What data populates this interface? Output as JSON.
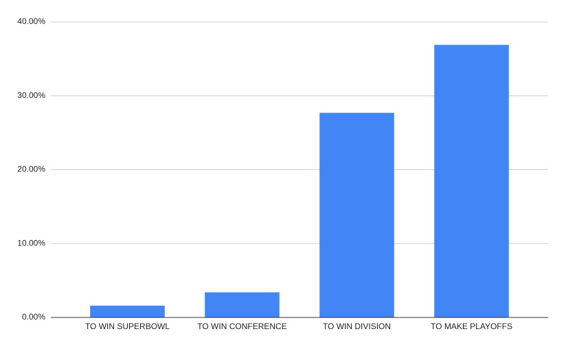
{
  "chart_data": {
    "type": "bar",
    "categories": [
      "TO WIN SUPERBOWL",
      "TO WIN CONFERENCE",
      "TO WIN DIVISION",
      "TO MAKE PLAYOFFS"
    ],
    "values": [
      1.6,
      3.4,
      27.7,
      36.9
    ],
    "color": "#4285f4",
    "ylim": [
      0,
      40
    ],
    "yticks": [
      {
        "value": 0,
        "label": "0.00%"
      },
      {
        "value": 10,
        "label": "10.00%"
      },
      {
        "value": 20,
        "label": "20.00%"
      },
      {
        "value": 30,
        "label": "30.00%"
      },
      {
        "value": 40,
        "label": "40.00%"
      }
    ],
    "grid": true
  }
}
